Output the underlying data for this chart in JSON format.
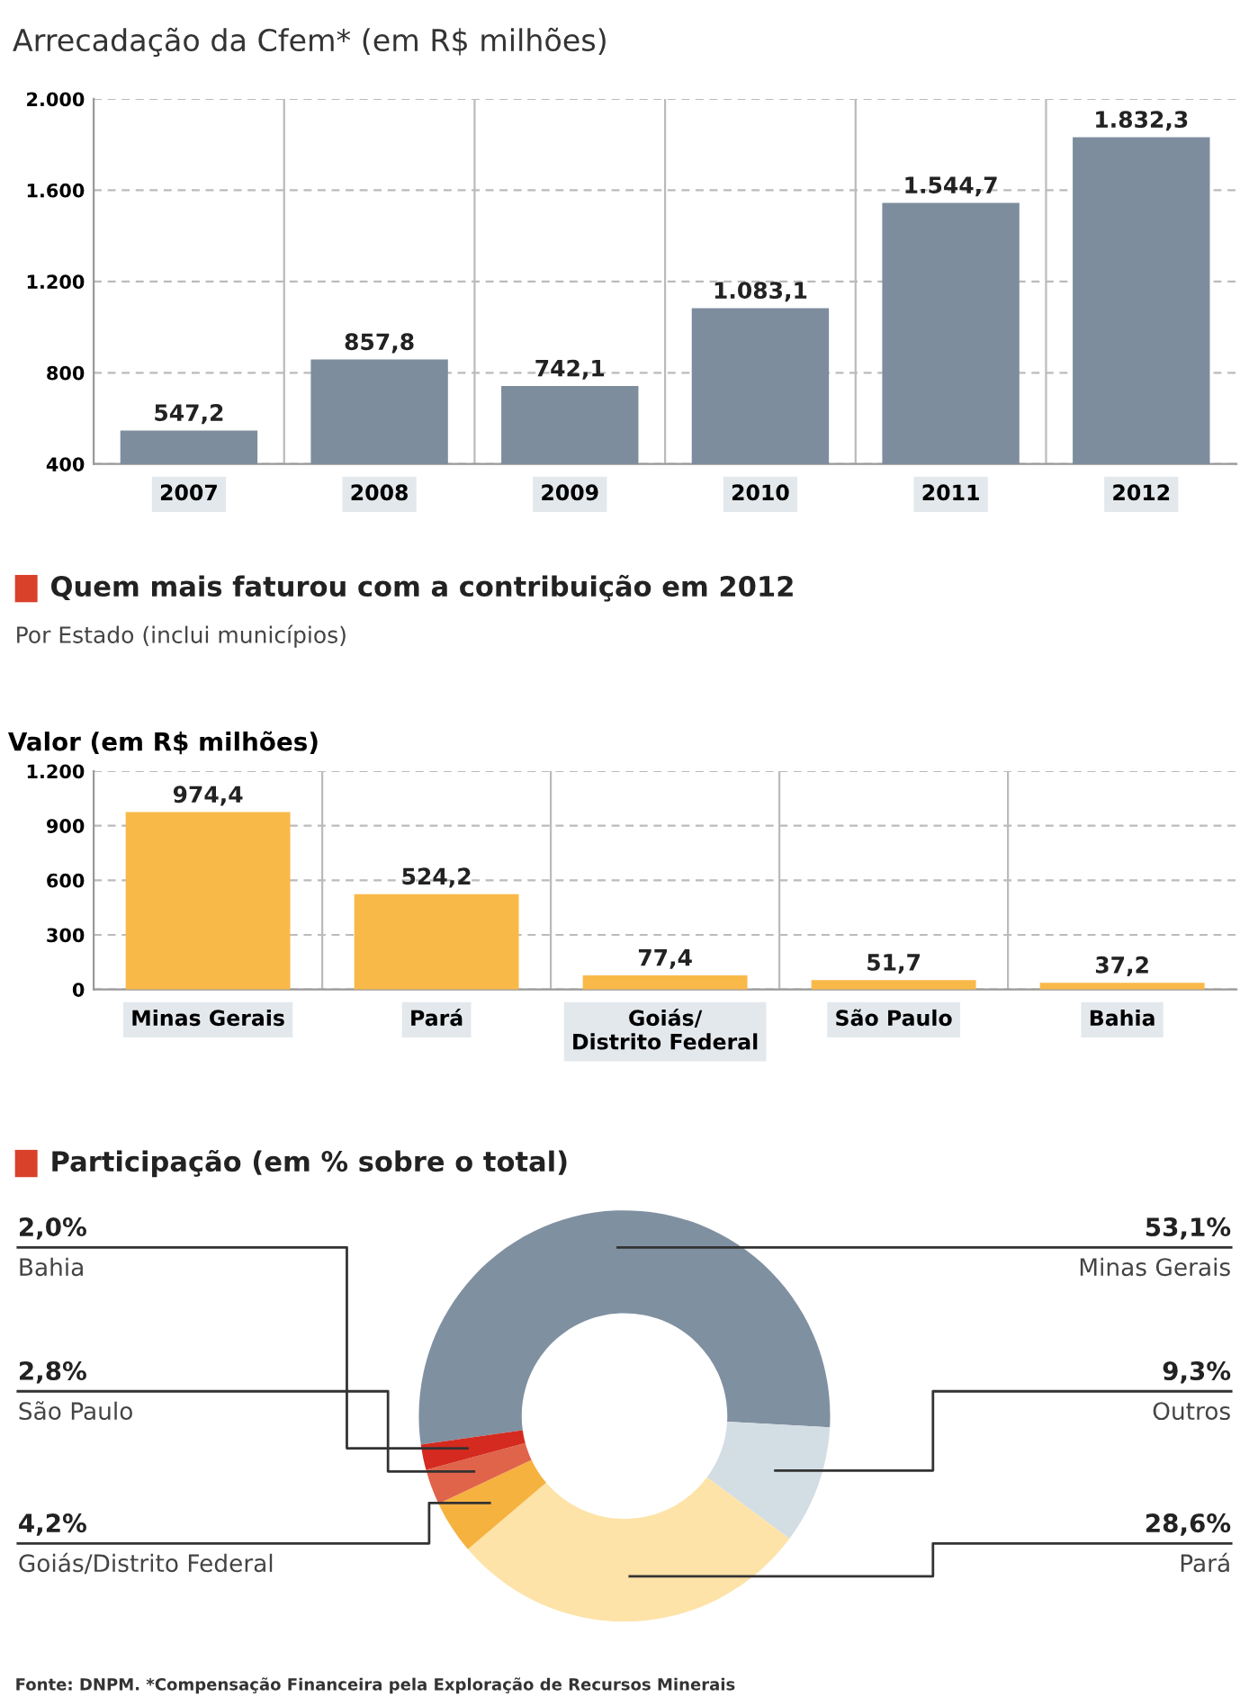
{
  "chart_data": [
    {
      "type": "bar",
      "title": "Arrecadação da Cfem* (em R$ milhões)",
      "categories": [
        "2007",
        "2008",
        "2009",
        "2010",
        "2011",
        "2012"
      ],
      "values": [
        547.2,
        857.8,
        742.1,
        1083.1,
        1544.7,
        1832.3
      ],
      "color": "#7d8d9d",
      "value_labels": [
        "547,2",
        "857,8",
        "742,1",
        "1.083,1",
        "1.544,7",
        "1.832,3"
      ],
      "ylim": [
        400,
        2000
      ],
      "yticks": [
        {
          "value": 400,
          "label": "400"
        },
        {
          "value": 800,
          "label": "800"
        },
        {
          "value": 1200,
          "label": "1.200"
        },
        {
          "value": 1600,
          "label": "1.600"
        },
        {
          "value": 2000,
          "label": "2.000"
        }
      ],
      "grid": "y"
    },
    {
      "type": "bar",
      "title": "Quem mais faturou com a contribuição em 2012",
      "subtitle": "Por Estado (inclui municípios)",
      "ylabel": "Valor (em R$ milhões)",
      "categories": [
        "Minas Gerais",
        "Pará",
        "Goiás/\nDistrito Federal",
        "São Paulo",
        "Bahia"
      ],
      "values": [
        974.4,
        524.2,
        77.4,
        51.7,
        37.2
      ],
      "color": "#f9b949",
      "value_labels": [
        "974,4",
        "524,2",
        "77,4",
        "51,7",
        "37,2"
      ],
      "ylim": [
        0,
        1200
      ],
      "yticks": [
        0,
        300,
        600,
        900,
        {
          "value": 1200,
          "label": "1.200"
        }
      ],
      "grid": "y"
    },
    {
      "type": "donut",
      "title": "Participação (em % sobre o total)",
      "categories": [
        "Minas Gerais",
        "Outros",
        "Pará",
        "Goiás/Distrito Federal",
        "São Paulo",
        "Bahia"
      ],
      "values": [
        53.1,
        9.3,
        28.6,
        4.2,
        2.8,
        2.0
      ],
      "colors": [
        "#7f90a1",
        "#d3dde4",
        "#fde3a8",
        "#f6b23f",
        "#e0644a",
        "#d42a1f"
      ],
      "value_labels": [
        "53,1%",
        "9,3%",
        "28,6%",
        "4,2%",
        "2,8%",
        "2,0%"
      ],
      "annotations": [
        "Fonte: DNPM. *Compensação Financeira pela Exploração de Recursos Minerais"
      ]
    }
  ]
}
